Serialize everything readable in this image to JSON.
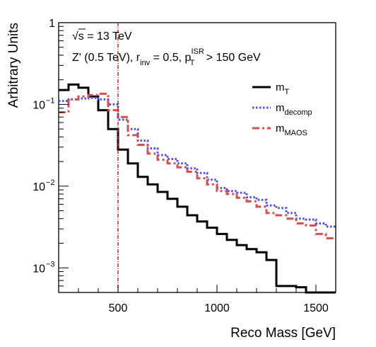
{
  "chart_data": {
    "type": "line",
    "title": "",
    "xlabel": "Reco Mass [GeV]",
    "ylabel": "Arbitrary Units",
    "xlim": [
      200,
      1600
    ],
    "ylim": [
      0.0005,
      1
    ],
    "yscale": "log",
    "grid": false,
    "legend_position": "top-right",
    "x_ticks": [
      500,
      1000,
      1500
    ],
    "x_tick_labels": [
      "500",
      "1000",
      "1500"
    ],
    "y_ticks": [
      0.001,
      0.01,
      0.1,
      1
    ],
    "annotations": {
      "sqrt_s": "√s = 13 TeV",
      "model_prefix": "Z' (0.5 TeV), r",
      "r_sub": "inv",
      "r_val": " = 0.5, p",
      "pt_sup": "ISR",
      "pt_sub": "T",
      "pt_cut": " > 150 GeV"
    },
    "vline": {
      "x": 500,
      "color": "#e8141e"
    },
    "bin_edges": [
      200,
      250,
      300,
      350,
      400,
      450,
      500,
      550,
      600,
      650,
      700,
      750,
      800,
      850,
      900,
      950,
      1000,
      1050,
      1100,
      1150,
      1200,
      1250,
      1300,
      1350,
      1400,
      1450,
      1500,
      1550,
      1600
    ],
    "series": [
      {
        "name": "m",
        "sub": "T",
        "color": "#000000",
        "style": "solid",
        "values": [
          0.15,
          0.175,
          0.16,
          0.125,
          0.085,
          0.05,
          0.028,
          0.019,
          0.013,
          0.0105,
          0.0085,
          0.007,
          0.0056,
          0.0044,
          0.0037,
          0.0031,
          0.0026,
          0.0022,
          0.0019,
          0.0017,
          0.00155,
          0.00125,
          0.0006,
          0.0006,
          0.00058,
          0.0005,
          0.0005,
          0.0005
        ]
      },
      {
        "name": "m",
        "sub": "decomp",
        "color": "#5050e0",
        "style": "dotted",
        "values": [
          0.11,
          0.115,
          0.118,
          0.12,
          0.115,
          0.1,
          0.065,
          0.05,
          0.036,
          0.029,
          0.024,
          0.0215,
          0.019,
          0.0165,
          0.0145,
          0.012,
          0.0095,
          0.0087,
          0.0083,
          0.0073,
          0.0068,
          0.0058,
          0.0054,
          0.0047,
          0.004,
          0.0039,
          0.0035,
          0.0032
        ]
      },
      {
        "name": "m",
        "sub": "MAOS",
        "color": "#d2504f",
        "style": "dashed",
        "values": [
          0.08,
          0.115,
          0.125,
          0.13,
          0.135,
          0.085,
          0.07,
          0.042,
          0.032,
          0.025,
          0.021,
          0.019,
          0.017,
          0.015,
          0.0125,
          0.0105,
          0.0087,
          0.008,
          0.0072,
          0.0065,
          0.0056,
          0.0047,
          0.0044,
          0.004,
          0.0035,
          0.0033,
          0.0026,
          0.0023
        ]
      }
    ]
  }
}
